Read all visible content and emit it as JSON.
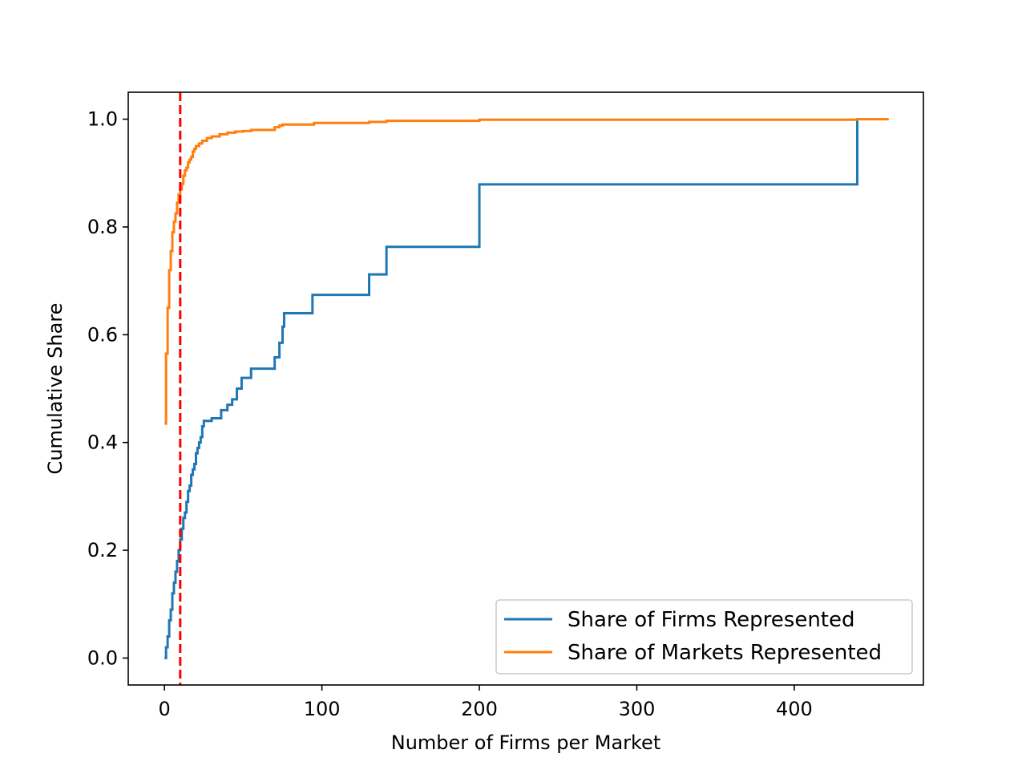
{
  "chart_data": {
    "type": "line",
    "title": "",
    "xlabel": "Number of Firms per Market",
    "ylabel": "Cumulative Share",
    "xlim": [
      -23,
      482
    ],
    "ylim": [
      -0.05,
      1.05
    ],
    "xticks": [
      0,
      100,
      200,
      300,
      400
    ],
    "xtick_labels": [
      "0",
      "100",
      "200",
      "300",
      "400"
    ],
    "yticks": [
      0.0,
      0.2,
      0.4,
      0.6,
      0.8,
      1.0
    ],
    "ytick_labels": [
      "0.0",
      "0.2",
      "0.4",
      "0.6",
      "0.8",
      "1.0"
    ],
    "grid": false,
    "legend_position": "lower-right",
    "step": "post",
    "series": [
      {
        "name": "Share of Firms Represented",
        "color": "#1f77b4",
        "x": [
          0,
          1,
          2,
          3,
          4,
          5,
          6,
          7,
          8,
          9,
          10,
          11,
          12,
          13,
          14,
          15,
          16,
          17,
          18,
          19,
          20,
          21,
          22,
          23,
          24,
          25,
          27,
          28,
          30,
          33,
          36,
          40,
          43,
          46,
          49,
          55,
          70,
          73,
          75,
          76,
          94,
          130,
          141,
          200,
          440,
          441
        ],
        "y": [
          0.0,
          0.02,
          0.04,
          0.07,
          0.09,
          0.12,
          0.14,
          0.16,
          0.18,
          0.2,
          0.22,
          0.24,
          0.26,
          0.27,
          0.29,
          0.31,
          0.32,
          0.34,
          0.35,
          0.36,
          0.38,
          0.39,
          0.4,
          0.41,
          0.43,
          0.44,
          0.44,
          0.44,
          0.445,
          0.445,
          0.46,
          0.47,
          0.48,
          0.5,
          0.52,
          0.537,
          0.558,
          0.585,
          0.615,
          0.64,
          0.674,
          0.712,
          0.763,
          0.879,
          1.0,
          1.0
        ]
      },
      {
        "name": "Share of Markets Represented",
        "color": "#ff7f0e",
        "x": [
          0,
          1,
          2,
          3,
          4,
          5,
          6,
          7,
          8,
          9,
          10,
          11,
          12,
          13,
          14,
          15,
          16,
          17,
          18,
          19,
          20,
          22,
          24,
          27,
          30,
          35,
          40,
          45,
          50,
          55,
          65,
          70,
          73,
          75,
          95,
          130,
          141,
          200,
          440,
          460
        ],
        "y": [
          0.435,
          0.565,
          0.65,
          0.72,
          0.755,
          0.79,
          0.81,
          0.825,
          0.845,
          0.86,
          0.87,
          0.88,
          0.895,
          0.905,
          0.91,
          0.92,
          0.925,
          0.93,
          0.94,
          0.945,
          0.95,
          0.955,
          0.96,
          0.965,
          0.968,
          0.972,
          0.975,
          0.977,
          0.978,
          0.98,
          0.98,
          0.985,
          0.988,
          0.99,
          0.993,
          0.995,
          0.997,
          0.999,
          1.0,
          1.0
        ]
      }
    ],
    "reference_lines": [
      {
        "orientation": "vertical",
        "x": 10,
        "color": "#ff0000",
        "style": "dashed"
      }
    ]
  }
}
